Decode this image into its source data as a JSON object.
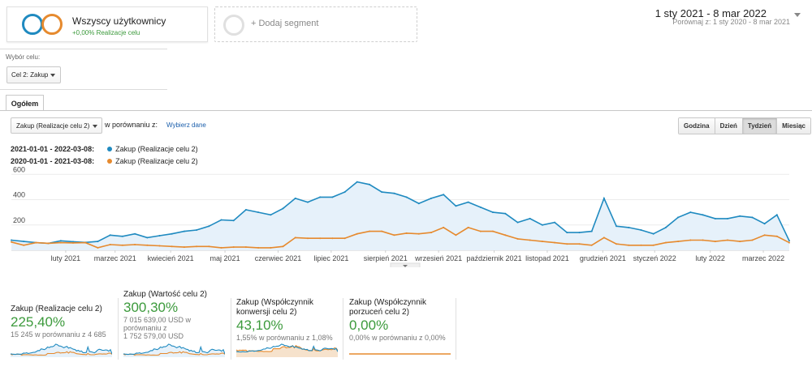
{
  "segment": {
    "name": "Wszyscy użytkownicy",
    "sub": "+0,00% Realizacje celu"
  },
  "add_segment": {
    "label": "+ Dodaj segment"
  },
  "date_range": {
    "main": "1 sty 2021 - 8 mar 2022",
    "compare": "Porównaj z: 1 sty 2020 - 8 mar 2021"
  },
  "goal": {
    "label": "Wybór celu:",
    "value": "Cel 2: Zakup"
  },
  "tab": {
    "label": "Ogółem"
  },
  "metric": {
    "value": "Zakup (Realizacje celu 2)",
    "compare_label": "w porównaniu z:",
    "compare_link": "Wybierz dane"
  },
  "period_buttons": [
    "Godzina",
    "Dzień",
    "Tydzień",
    "Miesiąc"
  ],
  "legend": [
    {
      "range": "2021-01-01 - 2022-03-08:",
      "name": "Zakup (Realizacje celu 2)",
      "color": "#1f8ac0"
    },
    {
      "range": "2020-01-01 - 2021-03-08:",
      "name": "Zakup (Realizacje celu 2)",
      "color": "#e68a2e"
    }
  ],
  "chart_data": {
    "type": "line",
    "title": "",
    "xlabel": "",
    "ylabel": "",
    "ylim": [
      0,
      640
    ],
    "yticks": [
      "600",
      "400",
      "200"
    ],
    "ytick_values": [
      600,
      400,
      200
    ],
    "xticks": [
      "luty 2021",
      "marzec 2021",
      "kwiecień 2021",
      "maj 2021",
      "czerwiec 2021",
      "lipiec 2021",
      "sierpień 2021",
      "wrzesień 2021",
      "październik 2021",
      "listopad 2021",
      "grudzień 2021",
      "styczeń 2022",
      "luty 2022",
      "marzec 2022"
    ],
    "xtick_positions": [
      4.4,
      8.4,
      12.9,
      17.3,
      21.6,
      25.9,
      30.3,
      34.6,
      39.1,
      43.4,
      47.9,
      52.1,
      56.6,
      60.9
    ],
    "series": [
      {
        "name": "2021-01-01 - 2022-03-08",
        "color": "#1f8ac0",
        "fill": true,
        "values": [
          80,
          70,
          60,
          55,
          75,
          68,
          62,
          70,
          120,
          110,
          130,
          100,
          115,
          130,
          150,
          160,
          190,
          240,
          235,
          320,
          300,
          280,
          330,
          410,
          380,
          420,
          420,
          460,
          540,
          520,
          460,
          450,
          420,
          370,
          410,
          440,
          350,
          380,
          340,
          300,
          290,
          220,
          250,
          200,
          220,
          140,
          140,
          150,
          410,
          190,
          180,
          160,
          130,
          180,
          260,
          300,
          280,
          250,
          250,
          270,
          260,
          210,
          280,
          75
        ]
      },
      {
        "name": "2020-01-01 - 2021-03-08",
        "color": "#e68a2e",
        "fill": false,
        "values": [
          65,
          40,
          60,
          55,
          60,
          58,
          60,
          20,
          45,
          40,
          45,
          40,
          35,
          30,
          25,
          30,
          30,
          20,
          25,
          25,
          20,
          20,
          30,
          100,
          95,
          95,
          95,
          95,
          130,
          150,
          150,
          120,
          135,
          130,
          140,
          180,
          120,
          180,
          150,
          150,
          120,
          90,
          80,
          70,
          60,
          50,
          50,
          40,
          100,
          50,
          40,
          40,
          40,
          60,
          70,
          80,
          80,
          70,
          80,
          70,
          80,
          120,
          110,
          60
        ]
      }
    ]
  },
  "scorecards": [
    {
      "title": "Zakup (Realizacje celu 2)",
      "value": "225,40%",
      "sub": "15 245 w porównaniu z 4 685"
    },
    {
      "title": "Zakup (Wartość celu 2)",
      "value": "300,30%",
      "sub1": "7 015 639,00 USD w",
      "sub2": "porównaniu z",
      "sub3": "1 752 579,00 USD"
    },
    {
      "title1": "Zakup (Współczynnik",
      "title2": "konwersji celu 2)",
      "value": "43,10%",
      "sub": "1,55% w porównaniu z 1,08%"
    },
    {
      "title1": "Zakup (Współczynnik",
      "title2": "porzuceń celu 2)",
      "value": "0,00%",
      "sub": "0,00% w porównaniu z 0,00%"
    }
  ]
}
